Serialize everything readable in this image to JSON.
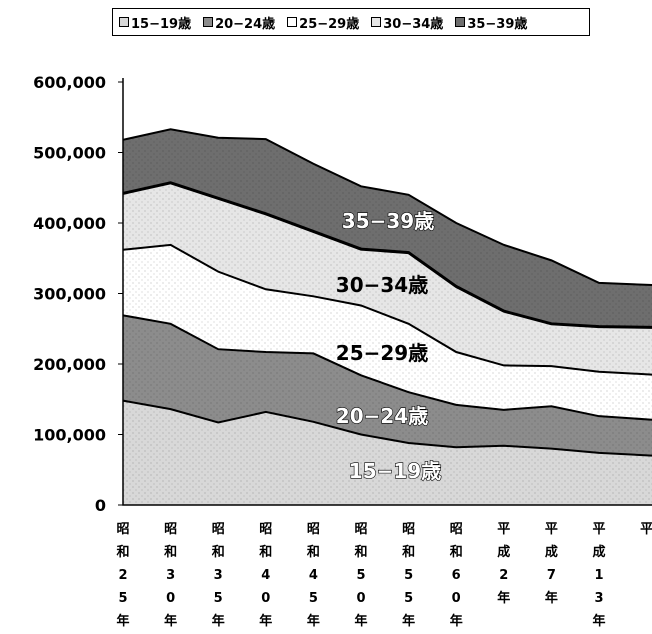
{
  "chart_data": {
    "type": "area",
    "stacked": true,
    "categories": [
      [
        "昭",
        "和",
        "2",
        "5",
        "年"
      ],
      [
        "昭",
        "和",
        "3",
        "0",
        "年"
      ],
      [
        "昭",
        "和",
        "3",
        "5",
        "年"
      ],
      [
        "昭",
        "和",
        "4",
        "0",
        "年"
      ],
      [
        "昭",
        "和",
        "4",
        "5",
        "年"
      ],
      [
        "昭",
        "和",
        "5",
        "0",
        "年"
      ],
      [
        "昭",
        "和",
        "5",
        "5",
        "年"
      ],
      [
        "昭",
        "和",
        "6",
        "0",
        "年"
      ],
      [
        "平",
        "成",
        "2",
        "年"
      ],
      [
        "平",
        "成",
        "7",
        "年"
      ],
      [
        "平",
        "成",
        "1",
        "3",
        "年"
      ],
      [
        "平"
      ]
    ],
    "ylim": [
      0,
      600000
    ],
    "yticks": [
      "600,000",
      "500,000",
      "400,000",
      "300,000",
      "200,000",
      "100,000",
      "0"
    ],
    "series": [
      {
        "name": "15−19歳",
        "label": "15−19歳",
        "color": "#d8d8d8",
        "values": [
          148000,
          136000,
          117000,
          132000,
          118000,
          100000,
          88000,
          82000,
          84000,
          80000,
          74000,
          70000
        ]
      },
      {
        "name": "20−24歳",
        "label": "20−24歳",
        "color": "#8c8c8c",
        "values": [
          121000,
          121000,
          104000,
          85000,
          97000,
          84000,
          72000,
          60000,
          51000,
          60000,
          52000,
          51000
        ]
      },
      {
        "name": "25−29歳",
        "label": "25−29歳",
        "color": "#ffffff",
        "values": [
          93000,
          112000,
          110000,
          89000,
          81000,
          99000,
          97000,
          75000,
          63000,
          57000,
          63000,
          64000
        ]
      },
      {
        "name": "30−34歳",
        "label": "30−34歳",
        "color": "#e6e6e6",
        "values": [
          80000,
          88000,
          104000,
          107000,
          92000,
          80000,
          101000,
          93000,
          77000,
          60000,
          64000,
          67000
        ]
      },
      {
        "name": "35−39歳",
        "label": "35−39歳",
        "color": "#6e6e6e",
        "values": [
          76000,
          76000,
          86000,
          106000,
          96000,
          89000,
          82000,
          90000,
          94000,
          90000,
          62000,
          60000
        ]
      }
    ]
  }
}
